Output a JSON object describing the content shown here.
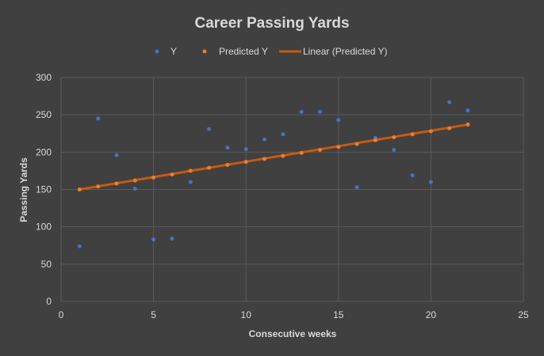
{
  "chart_data": {
    "type": "scatter",
    "title": "Career Passing Yards",
    "xlabel": "Consecutive weeks",
    "ylabel": "Passing Yards",
    "xlim": [
      0,
      25
    ],
    "ylim": [
      0,
      300
    ],
    "x_ticks": [
      0,
      5,
      10,
      15,
      20,
      25
    ],
    "y_ticks": [
      0,
      50,
      100,
      150,
      200,
      250,
      300
    ],
    "grid": true,
    "legend_position": "top",
    "legend": [
      "Y",
      "Predicted Y",
      "Linear (Predicted Y)"
    ],
    "series": [
      {
        "name": "Y",
        "color": "#4472c4",
        "x": [
          1,
          2,
          3,
          4,
          5,
          6,
          7,
          8,
          9,
          10,
          11,
          12,
          13,
          14,
          15,
          16,
          17,
          18,
          19,
          20,
          21,
          22
        ],
        "y": [
          74,
          245,
          196,
          151,
          83,
          84,
          160,
          231,
          206,
          204,
          217,
          224,
          254,
          254,
          243,
          153,
          219,
          203,
          169,
          160,
          267,
          256
        ]
      },
      {
        "name": "Predicted Y",
        "color": "#ed7d31",
        "x": [
          1,
          2,
          3,
          4,
          5,
          6,
          7,
          8,
          9,
          10,
          11,
          12,
          13,
          14,
          15,
          16,
          17,
          18,
          19,
          20,
          21,
          22
        ],
        "y": [
          150,
          154,
          158,
          162,
          166,
          170,
          175,
          179,
          183,
          187,
          191,
          195,
          199,
          203,
          207,
          211,
          216,
          220,
          224,
          228,
          232,
          237
        ]
      }
    ],
    "trendline": {
      "name": "Linear (Predicted Y)",
      "color": "#c55a11",
      "x": [
        1,
        22
      ],
      "y": [
        150,
        237
      ]
    }
  }
}
